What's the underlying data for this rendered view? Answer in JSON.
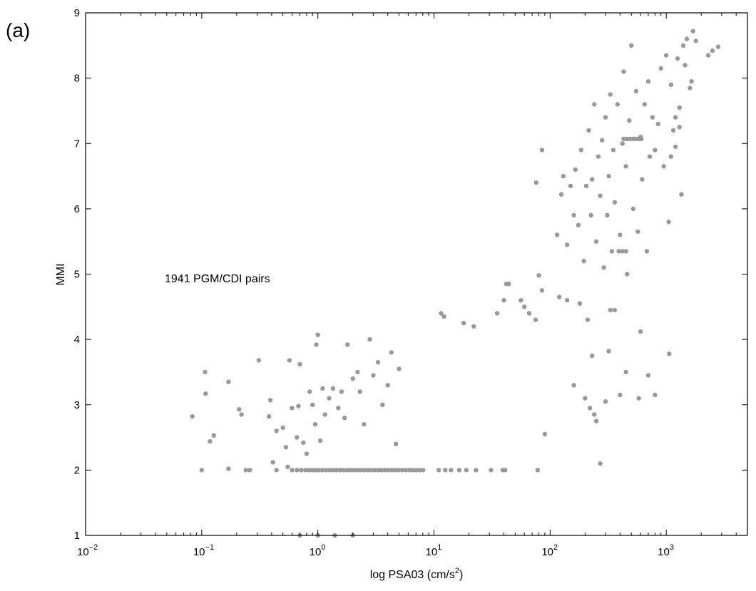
{
  "panel_label": "(a)",
  "chart_data": {
    "type": "scatter",
    "xlabel_base": "log PSA03 (cm/s",
    "xlabel_sup": "2",
    "xlabel_end": ")",
    "ylabel": "MMI",
    "annotation": "1941 PGM/CDI pairs",
    "xscale": "log",
    "xlim": [
      0.01,
      5000
    ],
    "ylim": [
      1,
      9
    ],
    "grid": false,
    "marker_color": "#999999",
    "x_ticks": [
      {
        "value": 0.01,
        "base": "10",
        "exp": "−2"
      },
      {
        "value": 0.1,
        "base": "10",
        "exp": "−1"
      },
      {
        "value": 1,
        "base": "10",
        "exp": "0"
      },
      {
        "value": 10,
        "base": "10",
        "exp": "1"
      },
      {
        "value": 100,
        "base": "10",
        "exp": "2"
      },
      {
        "value": 1000,
        "base": "10",
        "exp": "3"
      }
    ],
    "y_ticks": [
      {
        "value": 1,
        "label": "1"
      },
      {
        "value": 2,
        "label": "2"
      },
      {
        "value": 3,
        "label": "3"
      },
      {
        "value": 4,
        "label": "4"
      },
      {
        "value": 5,
        "label": "5"
      },
      {
        "value": 6,
        "label": "6"
      },
      {
        "value": 7,
        "label": "7"
      },
      {
        "value": 8,
        "label": "8"
      },
      {
        "value": 9,
        "label": "9"
      }
    ],
    "series": [
      {
        "points": [
          [
            0.083,
            2.82
          ],
          [
            0.1,
            2.0
          ],
          [
            0.107,
            3.5
          ],
          [
            0.108,
            3.17
          ],
          [
            0.118,
            2.44
          ],
          [
            0.127,
            2.53
          ],
          [
            0.17,
            2.02
          ],
          [
            0.17,
            3.35
          ],
          [
            0.21,
            2.93
          ],
          [
            0.22,
            2.85
          ],
          [
            0.24,
            2.0
          ],
          [
            0.26,
            2.0
          ],
          [
            0.31,
            3.68
          ],
          [
            0.38,
            2.82
          ],
          [
            0.39,
            3.07
          ],
          [
            0.41,
            2.12
          ],
          [
            0.44,
            2.0
          ],
          [
            0.44,
            2.6
          ],
          [
            0.5,
            2.65
          ],
          [
            0.53,
            2.35
          ],
          [
            0.55,
            2.05
          ],
          [
            0.57,
            3.68
          ],
          [
            0.6,
            2.95
          ],
          [
            0.66,
            2.5
          ],
          [
            0.68,
            2.98
          ],
          [
            0.7,
            3.62
          ],
          [
            0.75,
            2.42
          ],
          [
            0.8,
            2.25
          ],
          [
            0.85,
            3.2
          ],
          [
            0.9,
            3.0
          ],
          [
            0.95,
            2.7
          ],
          [
            0.97,
            3.92
          ],
          [
            1.0,
            4.07
          ],
          [
            1.05,
            2.45
          ],
          [
            1.1,
            3.25
          ],
          [
            1.15,
            2.85
          ],
          [
            1.25,
            3.1
          ],
          [
            1.35,
            3.25
          ],
          [
            1.5,
            2.95
          ],
          [
            1.6,
            3.2
          ],
          [
            1.7,
            2.8
          ],
          [
            1.8,
            3.92
          ],
          [
            2.0,
            3.4
          ],
          [
            2.2,
            3.5
          ],
          [
            2.3,
            3.2
          ],
          [
            2.5,
            2.7
          ],
          [
            2.8,
            4.0
          ],
          [
            3.0,
            3.45
          ],
          [
            3.3,
            3.65
          ],
          [
            3.6,
            3.0
          ],
          [
            4.0,
            3.3
          ],
          [
            4.3,
            3.8
          ],
          [
            4.7,
            2.4
          ],
          [
            5.0,
            3.55
          ],
          [
            0.7,
            1.0
          ],
          [
            1.0,
            1.0
          ],
          [
            1.4,
            1.0
          ],
          [
            2.0,
            1.0
          ],
          [
            0.6,
            2.0
          ],
          [
            0.66,
            2.0
          ],
          [
            0.72,
            2.0
          ],
          [
            0.78,
            2.0
          ],
          [
            0.84,
            2.0
          ],
          [
            0.9,
            2.0
          ],
          [
            0.96,
            2.0
          ],
          [
            1.02,
            2.0
          ],
          [
            1.1,
            2.0
          ],
          [
            1.18,
            2.0
          ],
          [
            1.26,
            2.0
          ],
          [
            1.35,
            2.0
          ],
          [
            1.45,
            2.0
          ],
          [
            1.55,
            2.0
          ],
          [
            1.66,
            2.0
          ],
          [
            1.78,
            2.0
          ],
          [
            1.9,
            2.0
          ],
          [
            2.04,
            2.0
          ],
          [
            2.18,
            2.0
          ],
          [
            2.34,
            2.0
          ],
          [
            2.5,
            2.0
          ],
          [
            2.68,
            2.0
          ],
          [
            2.87,
            2.0
          ],
          [
            3.07,
            2.0
          ],
          [
            3.3,
            2.0
          ],
          [
            3.52,
            2.0
          ],
          [
            3.78,
            2.0
          ],
          [
            4.05,
            2.0
          ],
          [
            4.34,
            2.0
          ],
          [
            4.65,
            2.0
          ],
          [
            4.98,
            2.0
          ],
          [
            5.33,
            2.0
          ],
          [
            5.72,
            2.0
          ],
          [
            6.12,
            2.0
          ],
          [
            6.56,
            2.0
          ],
          [
            7.03,
            2.0
          ],
          [
            7.53,
            2.0
          ],
          [
            8.07,
            2.0
          ],
          [
            11.0,
            2.0
          ],
          [
            12.5,
            2.0
          ],
          [
            14.0,
            2.0
          ],
          [
            16.5,
            2.0
          ],
          [
            19.0,
            2.0
          ],
          [
            23.0,
            2.0
          ],
          [
            31.0,
            2.0
          ],
          [
            39.0,
            2.0
          ],
          [
            41.0,
            2.0
          ],
          [
            78.0,
            2.0
          ],
          [
            11.5,
            4.4
          ],
          [
            12.2,
            4.35
          ],
          [
            18.0,
            4.25
          ],
          [
            22.0,
            4.2
          ],
          [
            35.0,
            4.4
          ],
          [
            40.0,
            4.6
          ],
          [
            42.0,
            4.85
          ],
          [
            44.0,
            4.85
          ],
          [
            56.0,
            4.6
          ],
          [
            60.0,
            4.5
          ],
          [
            66.0,
            4.4
          ],
          [
            75.0,
            4.3
          ],
          [
            80.0,
            4.98
          ],
          [
            85.0,
            4.75
          ],
          [
            90.0,
            2.55
          ],
          [
            120.0,
            4.65
          ],
          [
            140.0,
            4.6
          ],
          [
            180.0,
            4.55
          ],
          [
            210.0,
            4.3
          ],
          [
            160.0,
            3.3
          ],
          [
            200.0,
            3.1
          ],
          [
            220.0,
            2.95
          ],
          [
            230.0,
            3.75
          ],
          [
            240.0,
            2.85
          ],
          [
            250.0,
            2.75
          ],
          [
            270.0,
            2.1
          ],
          [
            300.0,
            3.05
          ],
          [
            320.0,
            3.82
          ],
          [
            400.0,
            3.15
          ],
          [
            450.0,
            3.5
          ],
          [
            580.0,
            3.1
          ],
          [
            600.0,
            4.12
          ],
          [
            700.0,
            3.45
          ],
          [
            800.0,
            3.15
          ],
          [
            1060.0,
            3.78
          ],
          [
            76.0,
            6.4
          ],
          [
            85.0,
            6.9
          ],
          [
            115.0,
            5.6
          ],
          [
            125.0,
            6.22
          ],
          [
            130.0,
            6.5
          ],
          [
            140.0,
            5.45
          ],
          [
            150.0,
            6.35
          ],
          [
            160.0,
            5.9
          ],
          [
            165.0,
            6.6
          ],
          [
            175.0,
            5.75
          ],
          [
            185.0,
            6.9
          ],
          [
            195.0,
            5.2
          ],
          [
            205.0,
            6.35
          ],
          [
            215.0,
            7.2
          ],
          [
            225.0,
            5.9
          ],
          [
            230.0,
            6.45
          ],
          [
            240.0,
            7.6
          ],
          [
            250.0,
            5.5
          ],
          [
            260.0,
            6.8
          ],
          [
            270.0,
            6.2
          ],
          [
            280.0,
            7.05
          ],
          [
            290.0,
            5.1
          ],
          [
            300.0,
            7.4
          ],
          [
            310.0,
            5.9
          ],
          [
            320.0,
            6.5
          ],
          [
            330.0,
            7.75
          ],
          [
            340.0,
            5.35
          ],
          [
            350.0,
            6.9
          ],
          [
            360.0,
            6.1
          ],
          [
            380.0,
            7.6
          ],
          [
            400.0,
            5.6
          ],
          [
            420.0,
            7.0
          ],
          [
            430.0,
            8.1
          ],
          [
            450.0,
            6.65
          ],
          [
            460.0,
            5.0
          ],
          [
            480.0,
            7.35
          ],
          [
            500.0,
            8.5
          ],
          [
            520.0,
            6.0
          ],
          [
            550.0,
            7.8
          ],
          [
            570.0,
            5.65
          ],
          [
            600.0,
            7.1
          ],
          [
            620.0,
            6.45
          ],
          [
            650.0,
            7.6
          ],
          [
            680.0,
            5.35
          ],
          [
            700.0,
            7.95
          ],
          [
            720.0,
            6.8
          ],
          [
            760.0,
            7.4
          ],
          [
            800.0,
            6.9
          ],
          [
            850.0,
            7.3
          ],
          [
            900.0,
            8.15
          ],
          [
            950.0,
            6.65
          ],
          [
            1000.0,
            8.35
          ],
          [
            1050.0,
            5.8
          ],
          [
            1100.0,
            7.9
          ],
          [
            1150.0,
            7.2
          ],
          [
            1200.0,
            6.95
          ],
          [
            1250.0,
            8.3
          ],
          [
            1300.0,
            7.55
          ],
          [
            1350.0,
            6.22
          ],
          [
            1400.0,
            8.5
          ],
          [
            1500.0,
            8.6
          ],
          [
            1600.0,
            7.85
          ],
          [
            1700.0,
            8.72
          ],
          [
            1800.0,
            8.57
          ],
          [
            2300.0,
            8.35
          ],
          [
            2500.0,
            8.42
          ],
          [
            2800.0,
            8.48
          ],
          [
            1450.0,
            8.2
          ],
          [
            1650.0,
            7.95
          ],
          [
            430.0,
            7.07
          ],
          [
            460.0,
            7.07
          ],
          [
            490.0,
            7.07
          ],
          [
            520.0,
            7.07
          ],
          [
            550.0,
            7.07
          ],
          [
            580.0,
            7.07
          ],
          [
            610.0,
            7.07
          ],
          [
            390.0,
            5.35
          ],
          [
            420.0,
            5.35
          ],
          [
            450.0,
            5.35
          ],
          [
            330.0,
            4.45
          ],
          [
            360.0,
            4.45
          ],
          [
            1200.0,
            7.4
          ],
          [
            1300.0,
            7.25
          ],
          [
            1100.0,
            6.8
          ]
        ]
      }
    ]
  }
}
